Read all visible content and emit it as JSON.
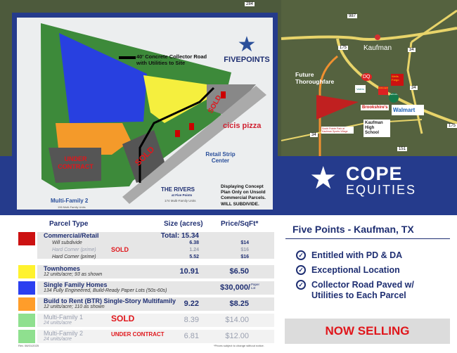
{
  "map": {
    "highways": [
      "284",
      "987",
      "175",
      "34",
      "34",
      "175",
      "151",
      "34"
    ],
    "town": "Kaufman",
    "future": "Future Thoroughfare",
    "places": [
      "DQ",
      "Wells Fargo",
      "Valero",
      "McDonald's",
      "Starbucks",
      "Brookshire's",
      "Walmart",
      "Kaufman High School",
      "South Pointe Park at Kaufman Sports Village"
    ]
  },
  "plan": {
    "road_legend": "40' Concrete Collector Road with Utilities to Site",
    "logo": "FIVEPOINTS",
    "sold1": "SOLD",
    "sold2": "SOLD",
    "under_contract": "UNDER CONTRACT",
    "cicis": "cicis pizza",
    "retail": "Retail Strip Center",
    "mf2": "Multi-Family 2",
    "mf2_units": "196 Multi-Family Units",
    "rivers": "THE RIVERS",
    "rivers_sub": "at Five Points",
    "rivers_units": "174 Multi-Family Units",
    "note1": "Displaying Concept Plan Only on Unsold Commercial Parcels.",
    "note2": "WILL SUBDIVIDE."
  },
  "brand": {
    "name": "COPE",
    "sub": "EQUITIES"
  },
  "table": {
    "headers": {
      "type": "Parcel Type",
      "size": "Size (acres)",
      "price": "Price/SqFt*"
    },
    "commercial": {
      "title": "Commercial/Retail",
      "color": "#cc1111",
      "total": "Total: 15.34",
      "sold": "SOLD",
      "subs": [
        {
          "label": "Will subdivide",
          "size": "6.38",
          "price": "$14"
        },
        {
          "label": "Hard Corner (prime)",
          "size": "1.24",
          "price": "$16"
        },
        {
          "label": "Hard Corner (prime)",
          "size": "5.52",
          "price": "$16"
        }
      ]
    },
    "rows": [
      {
        "title": "Townhomes",
        "sub": "12 units/acre; 93 as shown",
        "size": "10.91",
        "price": "$6.50",
        "color": "#fff22e"
      },
      {
        "title": "Single Family Homes",
        "sub": "134 Fully Engineered, Build-Ready Paper Lots (50s-60s)",
        "size": "",
        "price": "$30,000/",
        "price_unit": "Paper Lot",
        "color": "#2b3ff0"
      },
      {
        "title": "Build to Rent (BTR) Single-Story Multifamily",
        "sub": "12 units/acre; 110 as shown",
        "size": "9.22",
        "price": "$8.25",
        "color": "#ff9d2a"
      },
      {
        "title": "Multi-Family 1",
        "sub": "24 units/acre",
        "size": "8.39",
        "price": "$14.00",
        "status": "SOLD",
        "color": "#8fe08f"
      },
      {
        "title": "Multi-Family 2",
        "sub": "24 units/acre",
        "size": "6.81",
        "price": "$12.00",
        "status": "UNDER CONTRACT",
        "color": "#8fe08f"
      }
    ],
    "rev": "Rev. 08/01/2025",
    "disclaimer": "*Prices subject to change without notice."
  },
  "info": {
    "title": "Five Points - Kaufman, TX",
    "points": [
      "Entitled with PD & DA",
      "Exceptional Location",
      "Collector Road Paved w/ Utilities to Each Parcel"
    ],
    "cta": "NOW SELLING"
  }
}
